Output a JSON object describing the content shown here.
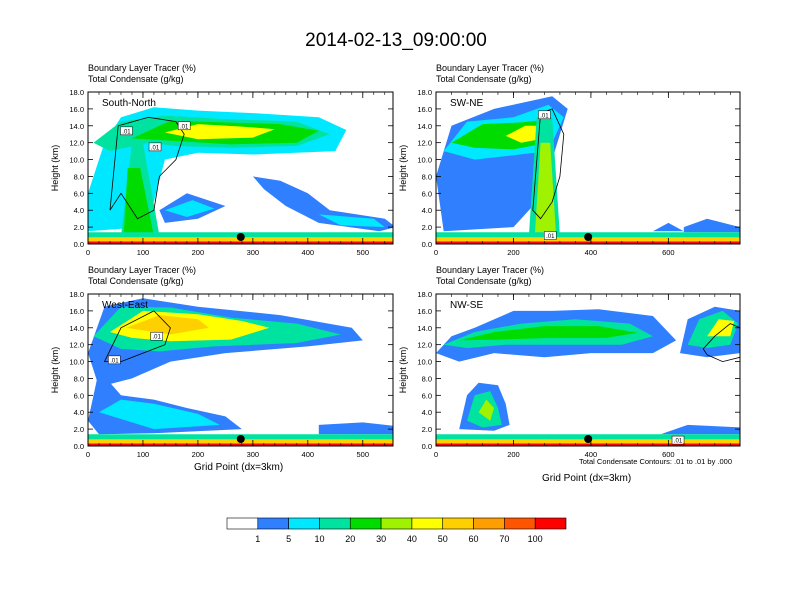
{
  "title": "2014-02-13_09:00:00",
  "panel_titles": {
    "line1": "Boundary Layer Tracer   (%)",
    "line2": "Total Condensate   (g/kg)"
  },
  "contour_note": "Total Condensate Contours: .01 to .01 by .000",
  "colors": {
    "levels": [
      "#ffffff",
      "#2f7fff",
      "#00e8ff",
      "#00e3a0",
      "#00dc00",
      "#9ff200",
      "#ffff00",
      "#ffd000",
      "#ff9e00",
      "#ff5500",
      "#ff0000"
    ],
    "contour": "#000000",
    "marker": "#000000"
  },
  "chart_data": [
    {
      "type": "heatmap",
      "label": "South-North",
      "xlabel": "",
      "ylabel": "Height (km)",
      "xlim": [
        0,
        555
      ],
      "ylim": [
        0,
        18
      ],
      "x_ticks": [
        0,
        100,
        200,
        300,
        400,
        500
      ],
      "y_ticks": [
        0.0,
        2.0,
        4.0,
        6.0,
        8.0,
        10.0,
        12.0,
        14.0,
        16.0,
        18.0
      ],
      "y_tick_labels": [
        "0.0",
        "2.0",
        "4.0",
        "6.0",
        "8.0",
        "10.0",
        "12.0",
        "14.0",
        "16.0",
        "18.0"
      ],
      "marker_x": 278,
      "contour_labels": [
        {
          "text": ".01",
          "x": 175,
          "y": 14.0
        },
        {
          "text": ".01",
          "x": 70,
          "y": 13.4
        },
        {
          "text": ".01",
          "x": 122,
          "y": 11.5
        }
      ]
    },
    {
      "type": "heatmap",
      "label": "SW-NE",
      "xlabel": "",
      "ylabel": "Height (km)",
      "xlim": [
        0,
        785
      ],
      "ylim": [
        0,
        18
      ],
      "x_ticks": [
        0,
        200,
        400,
        600
      ],
      "y_ticks": [
        0.0,
        2.0,
        4.0,
        6.0,
        8.0,
        10.0,
        12.0,
        14.0,
        16.0,
        18.0
      ],
      "y_tick_labels": [
        "0.0",
        "2.0",
        "4.0",
        "6.0",
        "8.0",
        "10.0",
        "12.0",
        "14.0",
        "16.0",
        "18.0"
      ],
      "marker_x": 393,
      "contour_labels": [
        {
          "text": ".01",
          "x": 280,
          "y": 15.3
        },
        {
          "text": ".01",
          "x": 295,
          "y": 1.0
        }
      ]
    },
    {
      "type": "heatmap",
      "label": "West-East",
      "xlabel": "Grid Point (dx=3km)",
      "ylabel": "Height (km)",
      "xlim": [
        0,
        555
      ],
      "ylim": [
        0,
        18
      ],
      "x_ticks": [
        0,
        100,
        200,
        300,
        400,
        500
      ],
      "y_ticks": [
        0.0,
        2.0,
        4.0,
        6.0,
        8.0,
        10.0,
        12.0,
        14.0,
        16.0,
        18.0
      ],
      "y_tick_labels": [
        "0.0",
        "2.0",
        "4.0",
        "6.0",
        "8.0",
        "10.0",
        "12.0",
        "14.0",
        "16.0",
        "18.0"
      ],
      "marker_x": 278,
      "contour_labels": [
        {
          "text": ".01",
          "x": 125,
          "y": 13.0
        },
        {
          "text": ".01",
          "x": 48,
          "y": 10.2
        }
      ]
    },
    {
      "type": "heatmap",
      "label": "NW-SE",
      "xlabel": "Grid Point (dx=3km)",
      "ylabel": "Height (km)",
      "xlim": [
        0,
        785
      ],
      "ylim": [
        0,
        18
      ],
      "x_ticks": [
        0,
        200,
        400,
        600
      ],
      "y_ticks": [
        0.0,
        2.0,
        4.0,
        6.0,
        8.0,
        10.0,
        12.0,
        14.0,
        16.0,
        18.0
      ],
      "y_tick_labels": [
        "0.0",
        "2.0",
        "4.0",
        "6.0",
        "8.0",
        "10.0",
        "12.0",
        "14.0",
        "16.0",
        "18.0"
      ],
      "marker_x": 393,
      "contour_labels": [
        {
          "text": ".01",
          "x": 625,
          "y": 0.7
        }
      ]
    }
  ],
  "colorbar": {
    "labels": [
      "1",
      "5",
      "10",
      "20",
      "30",
      "40",
      "50",
      "60",
      "70",
      "100"
    ]
  }
}
